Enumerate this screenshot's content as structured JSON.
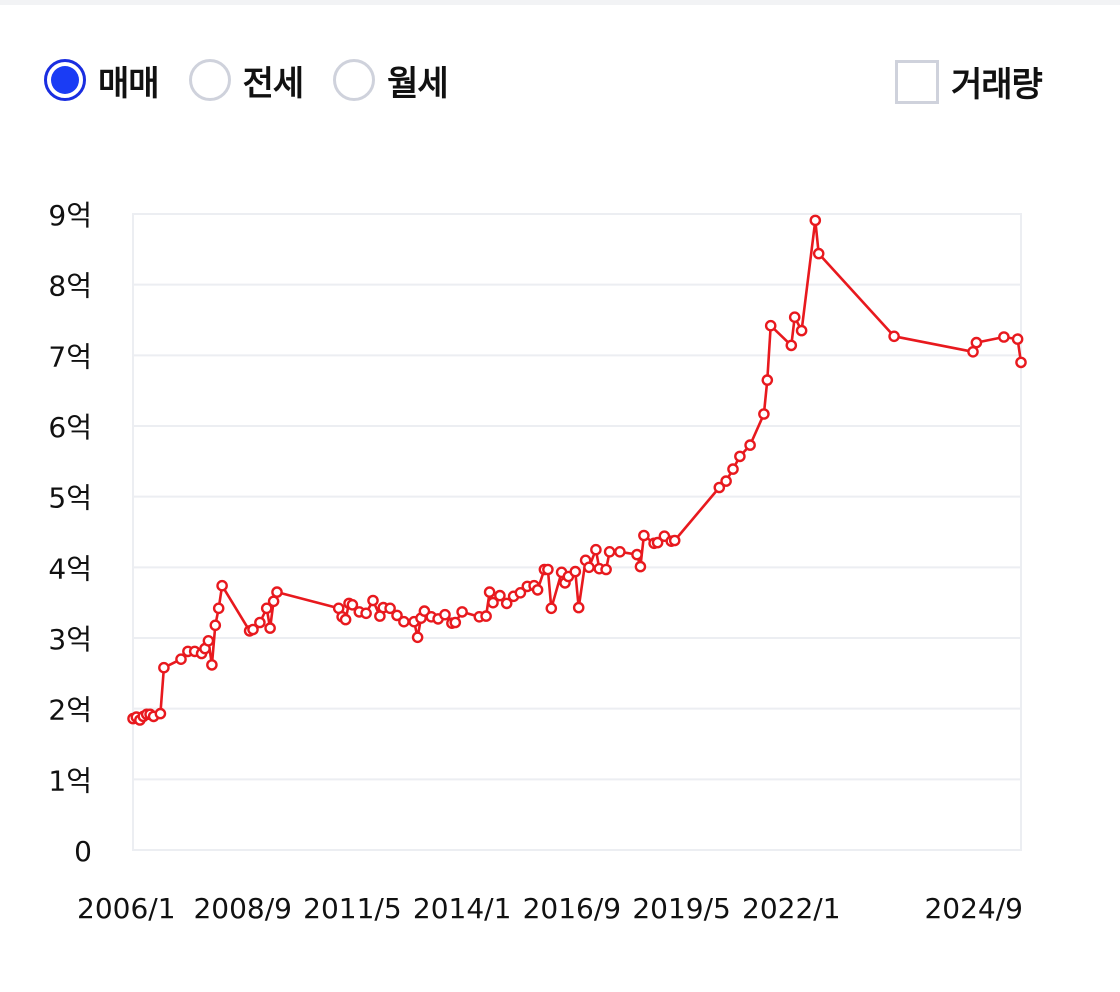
{
  "trade_types": [
    {
      "label": "매매",
      "selected": true
    },
    {
      "label": "전세",
      "selected": false
    },
    {
      "label": "월세",
      "selected": false
    }
  ],
  "volume_toggle": {
    "label": "거래량",
    "checked": false
  },
  "colors": {
    "accent": "#1a3cf5",
    "line": "#e8191e",
    "grid": "#eceef2"
  },
  "chart_data": {
    "type": "line",
    "ylabels": [
      "0",
      "1억",
      "2억",
      "3억",
      "4억",
      "5억",
      "6억",
      "7억",
      "8억",
      "9억"
    ],
    "xlabels": [
      "2006/1",
      "2008/9",
      "2011/5",
      "2014/1",
      "2016/9",
      "2019/5",
      "2022/1",
      "2024/9"
    ],
    "ylim": [
      0,
      9
    ],
    "grid": true,
    "series": [
      {
        "values": [
          [
            "2006-01",
            1.86
          ],
          [
            "2006-02",
            1.88
          ],
          [
            "2006-03",
            1.84
          ],
          [
            "2006-04",
            1.89
          ],
          [
            "2006-05",
            1.92
          ],
          [
            "2006-06",
            1.92
          ],
          [
            "2006-07",
            1.89
          ],
          [
            "2006-09",
            1.93
          ],
          [
            "2006-10",
            2.58
          ],
          [
            "2007-03",
            2.7
          ],
          [
            "2007-05",
            2.81
          ],
          [
            "2007-07",
            2.81
          ],
          [
            "2007-09",
            2.78
          ],
          [
            "2007-10",
            2.85
          ],
          [
            "2007-11",
            2.96
          ],
          [
            "2007-12",
            2.62
          ],
          [
            "2008-01",
            3.18
          ],
          [
            "2008-02",
            3.42
          ],
          [
            "2008-03",
            3.74
          ],
          [
            "2008-11",
            3.1
          ],
          [
            "2008-12",
            3.12
          ],
          [
            "2009-02",
            3.22
          ],
          [
            "2009-04",
            3.42
          ],
          [
            "2009-05",
            3.14
          ],
          [
            "2009-06",
            3.52
          ],
          [
            "2009-07",
            3.65
          ],
          [
            "2011-01",
            3.42
          ],
          [
            "2011-02",
            3.3
          ],
          [
            "2011-03",
            3.26
          ],
          [
            "2011-04",
            3.49
          ],
          [
            "2011-05",
            3.47
          ],
          [
            "2011-07",
            3.37
          ],
          [
            "2011-09",
            3.35
          ],
          [
            "2011-11",
            3.53
          ],
          [
            "2012-01",
            3.31
          ],
          [
            "2012-02",
            3.43
          ],
          [
            "2012-04",
            3.42
          ],
          [
            "2012-06",
            3.32
          ],
          [
            "2012-08",
            3.23
          ],
          [
            "2012-11",
            3.23
          ],
          [
            "2012-12",
            3.01
          ],
          [
            "2013-01",
            3.28
          ],
          [
            "2013-02",
            3.38
          ],
          [
            "2013-04",
            3.3
          ],
          [
            "2013-06",
            3.27
          ],
          [
            "2013-08",
            3.33
          ],
          [
            "2013-10",
            3.21
          ],
          [
            "2013-11",
            3.22
          ],
          [
            "2014-01",
            3.37
          ],
          [
            "2014-06",
            3.3
          ],
          [
            "2014-08",
            3.31
          ],
          [
            "2014-09",
            3.65
          ],
          [
            "2014-10",
            3.5
          ],
          [
            "2014-12",
            3.6
          ],
          [
            "2015-02",
            3.49
          ],
          [
            "2015-04",
            3.59
          ],
          [
            "2015-06",
            3.64
          ],
          [
            "2015-08",
            3.73
          ],
          [
            "2015-10",
            3.74
          ],
          [
            "2015-11",
            3.68
          ],
          [
            "2016-01",
            3.97
          ],
          [
            "2016-02",
            3.97
          ],
          [
            "2016-03",
            3.42
          ],
          [
            "2016-06",
            3.93
          ],
          [
            "2016-07",
            3.78
          ],
          [
            "2016-08",
            3.87
          ],
          [
            "2016-10",
            3.94
          ],
          [
            "2016-11",
            3.43
          ],
          [
            "2017-01",
            4.1
          ],
          [
            "2017-02",
            4.0
          ],
          [
            "2017-04",
            4.25
          ],
          [
            "2017-05",
            3.98
          ],
          [
            "2017-07",
            3.97
          ],
          [
            "2017-08",
            4.22
          ],
          [
            "2017-11",
            4.22
          ],
          [
            "2018-04",
            4.18
          ],
          [
            "2018-05",
            4.01
          ],
          [
            "2018-06",
            4.45
          ],
          [
            "2018-09",
            4.34
          ],
          [
            "2018-10",
            4.35
          ],
          [
            "2018-12",
            4.44
          ],
          [
            "2019-02",
            4.37
          ],
          [
            "2019-03",
            4.38
          ],
          [
            "2020-04",
            5.13
          ],
          [
            "2020-06",
            5.22
          ],
          [
            "2020-08",
            5.39
          ],
          [
            "2020-10",
            5.57
          ],
          [
            "2021-01",
            5.73
          ],
          [
            "2021-05",
            6.17
          ],
          [
            "2021-06",
            6.65
          ],
          [
            "2021-07",
            7.42
          ],
          [
            "2022-01",
            7.14
          ],
          [
            "2022-02",
            7.54
          ],
          [
            "2022-04",
            7.35
          ],
          [
            "2022-08",
            8.91
          ],
          [
            "2022-09",
            8.44
          ],
          [
            "2024-07",
            7.27
          ],
          [
            "2026-06",
            7.05
          ],
          [
            "2026-07",
            7.18
          ],
          [
            "2027-03",
            7.26
          ],
          [
            "2027-07",
            7.23
          ],
          [
            "2027-08",
            6.9
          ]
        ]
      }
    ]
  }
}
